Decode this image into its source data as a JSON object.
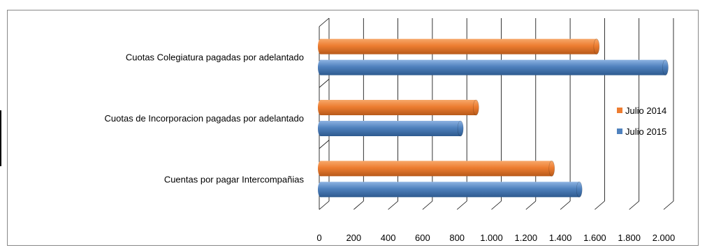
{
  "chart_data": {
    "type": "bar",
    "orientation": "horizontal",
    "categories": [
      "Cuotas Colegiatura pagadas por adelantado",
      "Cuotas de Incorporacion pagadas por adelantado",
      "Cuentas por pagar Intercompañias"
    ],
    "series": [
      {
        "name": "Julio 2014",
        "color": "#ED7D31",
        "values": [
          1610,
          910,
          1350
        ]
      },
      {
        "name": "Julio 2015",
        "color": "#4F81BD",
        "values": [
          2010,
          820,
          1510
        ]
      }
    ],
    "xticks": [
      {
        "value": 0,
        "label": "0"
      },
      {
        "value": 200,
        "label": "200"
      },
      {
        "value": 400,
        "label": "400"
      },
      {
        "value": 600,
        "label": "600"
      },
      {
        "value": 800,
        "label": "800"
      },
      {
        "value": 1000,
        "label": "1.000"
      },
      {
        "value": 1200,
        "label": "1.200"
      },
      {
        "value": 1400,
        "label": "1.400"
      },
      {
        "value": 1600,
        "label": "1.600"
      },
      {
        "value": 1800,
        "label": "1.800"
      },
      {
        "value": 2000,
        "label": "2.000"
      }
    ],
    "xlim": [
      0,
      2000
    ],
    "grid": true,
    "legend_position": "right"
  }
}
